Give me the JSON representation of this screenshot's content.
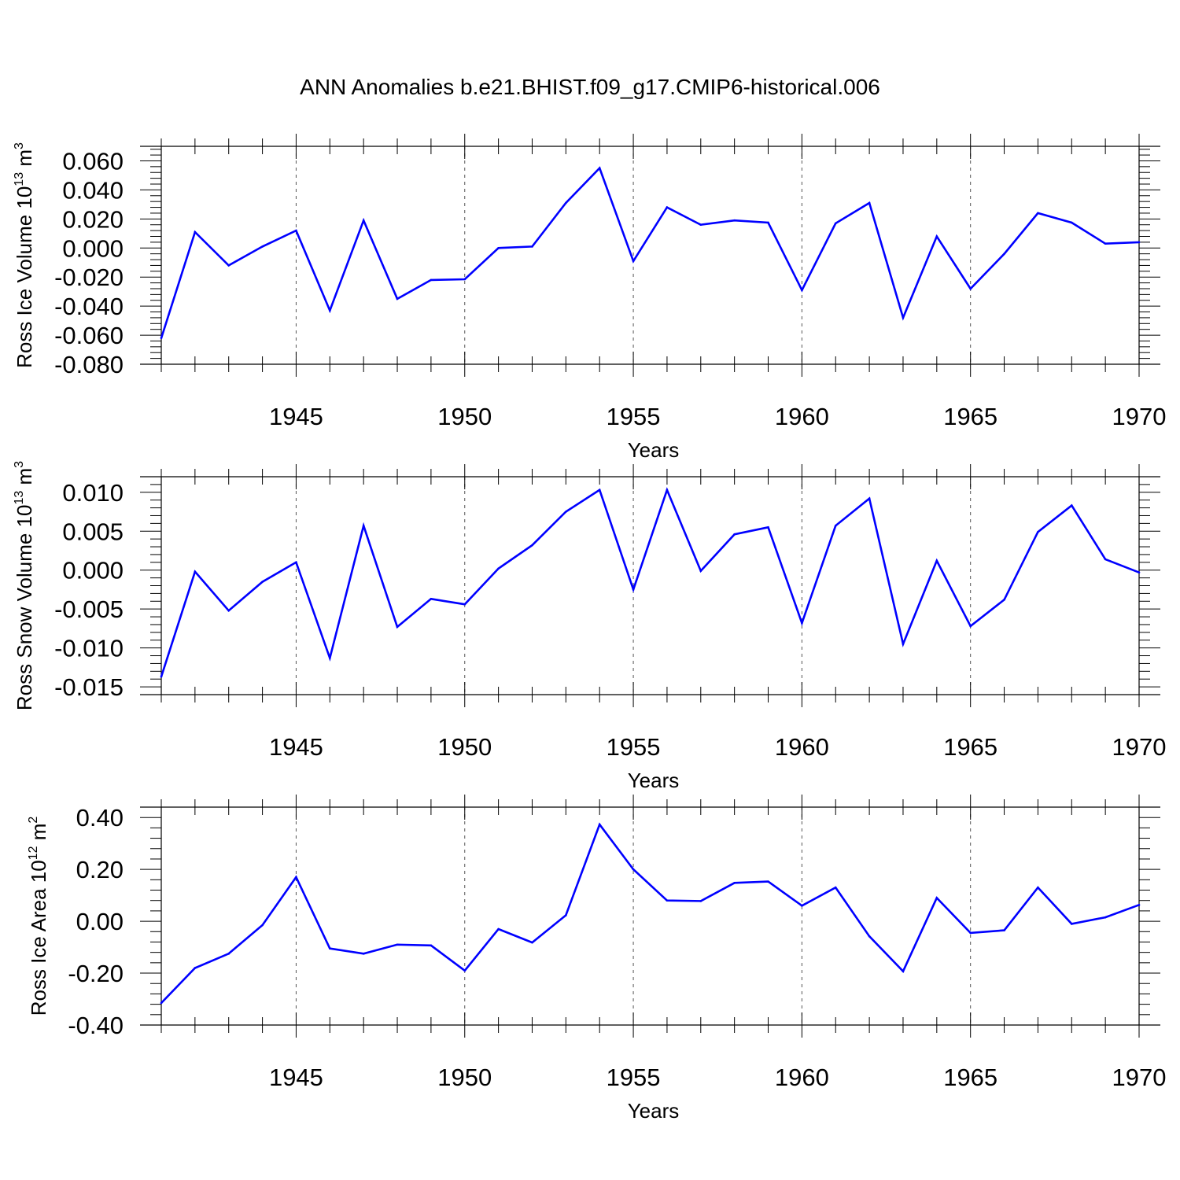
{
  "title": "ANN Anomalies b.e21.BHIST.f09_g17.CMIP6-historical.006",
  "colors": {
    "line": "#0000ff",
    "axis": "#000000",
    "grid": "#555555"
  },
  "chart_data": [
    {
      "type": "line",
      "ylabel": "Ross Ice Volume 10",
      "ylabel_exp": "13",
      "ylabel_unit": " m",
      "ylabel_unit_exp": "3",
      "xlabel": "Years",
      "xlim": [
        1941,
        1970
      ],
      "ylim": [
        -0.08,
        0.07
      ],
      "yticks": [
        0.06,
        0.04,
        0.02,
        0.0,
        -0.02,
        -0.04,
        -0.06,
        -0.08
      ],
      "ytick_labels": [
        "0.060",
        "0.040",
        "0.020",
        "0.000",
        "-0.020",
        "-0.040",
        "-0.060",
        "-0.080"
      ],
      "xticks": [
        1945,
        1950,
        1955,
        1960,
        1965,
        1970
      ],
      "xtick_labels": [
        "1945",
        "1950",
        "1955",
        "1960",
        "1965",
        "1970"
      ],
      "grid": "vertical dashed at major x ticks",
      "x": [
        1941,
        1942,
        1943,
        1944,
        1945,
        1946,
        1947,
        1948,
        1949,
        1950,
        1951,
        1952,
        1953,
        1954,
        1955,
        1956,
        1957,
        1958,
        1959,
        1960,
        1961,
        1962,
        1963,
        1964,
        1965,
        1966,
        1967,
        1968,
        1969,
        1970
      ],
      "values": [
        -0.062,
        0.011,
        -0.012,
        0.001,
        0.012,
        -0.043,
        0.019,
        -0.035,
        -0.022,
        -0.0215,
        0.0,
        0.001,
        0.031,
        0.055,
        -0.009,
        0.028,
        0.016,
        0.019,
        0.0175,
        -0.029,
        0.017,
        0.031,
        -0.048,
        0.008,
        -0.028,
        -0.004,
        0.024,
        0.0175,
        0.003,
        0.004
      ]
    },
    {
      "type": "line",
      "ylabel": "Ross Snow Volume 10",
      "ylabel_exp": "13",
      "ylabel_unit": " m",
      "ylabel_unit_exp": "3",
      "xlabel": "Years",
      "xlim": [
        1941,
        1970
      ],
      "ylim": [
        -0.016,
        0.012
      ],
      "yticks": [
        0.01,
        0.005,
        0.0,
        -0.005,
        -0.01,
        -0.015
      ],
      "ytick_labels": [
        "0.010",
        "0.005",
        "0.000",
        "-0.005",
        "-0.010",
        "-0.015"
      ],
      "xticks": [
        1945,
        1950,
        1955,
        1960,
        1965,
        1970
      ],
      "xtick_labels": [
        "1945",
        "1950",
        "1955",
        "1960",
        "1965",
        "1970"
      ],
      "grid": "vertical dashed at major x ticks",
      "x": [
        1941,
        1942,
        1943,
        1944,
        1945,
        1946,
        1947,
        1948,
        1949,
        1950,
        1951,
        1952,
        1953,
        1954,
        1955,
        1956,
        1957,
        1958,
        1959,
        1960,
        1961,
        1962,
        1963,
        1964,
        1965,
        1966,
        1967,
        1968,
        1969,
        1970
      ],
      "values": [
        -0.0137,
        -0.0002,
        -0.0052,
        -0.0015,
        0.001,
        -0.0113,
        0.0057,
        -0.0073,
        -0.0037,
        -0.0044,
        0.0002,
        0.0032,
        0.0075,
        0.0103,
        -0.0025,
        0.0103,
        -0.0001,
        0.0046,
        0.0055,
        -0.0068,
        0.0057,
        0.0092,
        -0.0095,
        0.0012,
        -0.0072,
        -0.0038,
        0.0049,
        0.0083,
        0.0014,
        -0.0003
      ]
    },
    {
      "type": "line",
      "ylabel": "Ross Ice Area 10",
      "ylabel_exp": "12",
      "ylabel_unit": " m",
      "ylabel_unit_exp": "2",
      "xlabel": "Years",
      "xlim": [
        1941,
        1970
      ],
      "ylim": [
        -0.4,
        0.44
      ],
      "yticks": [
        0.4,
        0.2,
        0.0,
        -0.2,
        -0.4
      ],
      "ytick_labels": [
        "0.40",
        "0.20",
        "0.00",
        "-0.20",
        "-0.40"
      ],
      "xticks": [
        1945,
        1950,
        1955,
        1960,
        1965,
        1970
      ],
      "xtick_labels": [
        "1945",
        "1950",
        "1955",
        "1960",
        "1965",
        "1970"
      ],
      "grid": "vertical dashed at major x ticks",
      "x": [
        1941,
        1942,
        1943,
        1944,
        1945,
        1946,
        1947,
        1948,
        1949,
        1950,
        1951,
        1952,
        1953,
        1954,
        1955,
        1956,
        1957,
        1958,
        1959,
        1960,
        1961,
        1962,
        1963,
        1964,
        1965,
        1966,
        1967,
        1968,
        1969,
        1970
      ],
      "values": [
        -0.315,
        -0.18,
        -0.125,
        -0.015,
        0.17,
        -0.105,
        -0.125,
        -0.09,
        -0.093,
        -0.19,
        -0.03,
        -0.082,
        0.023,
        0.373,
        0.2,
        0.08,
        0.078,
        0.148,
        0.153,
        0.06,
        0.13,
        -0.058,
        -0.193,
        0.09,
        -0.045,
        -0.035,
        0.13,
        -0.01,
        0.015,
        0.063
      ]
    }
  ]
}
